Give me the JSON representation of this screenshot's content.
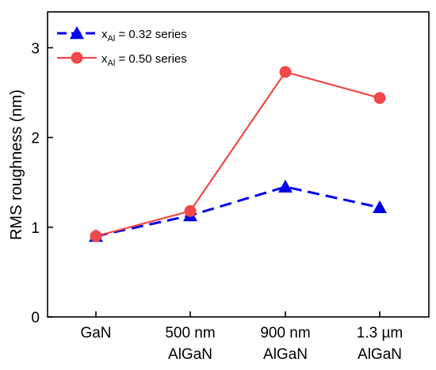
{
  "chart_data": {
    "type": "line",
    "categories": [
      [
        "GaN"
      ],
      [
        "500 nm",
        "AlGaN"
      ],
      [
        "900 nm",
        "AlGaN"
      ],
      [
        "1.3 µm",
        "AlGaN"
      ]
    ],
    "ylabel": "RMS roughness (nm)",
    "xlabel": "",
    "ylim": [
      0,
      3.4
    ],
    "yticks": [
      0,
      1,
      2,
      3
    ],
    "legend_position": "top-left",
    "series": [
      {
        "name_main": "x",
        "name_sub": "Al",
        "name_rest": " = 0.32 series",
        "values": [
          0.9,
          1.13,
          1.45,
          1.22
        ],
        "color": "#0000ee",
        "line_style": "dashed",
        "marker": "triangle"
      },
      {
        "name_main": "x",
        "name_sub": "Al",
        "name_rest": " = 0.50 series",
        "values": [
          0.9,
          1.18,
          2.73,
          2.44
        ],
        "color": "#f04848",
        "line_style": "solid",
        "marker": "circle"
      }
    ]
  }
}
